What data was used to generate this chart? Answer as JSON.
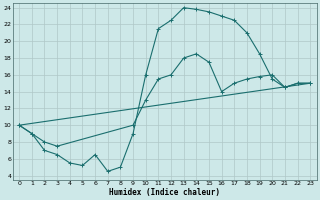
{
  "xlabel": "Humidex (Indice chaleur)",
  "bg_color": "#cde8e8",
  "grid_color": "#b0c8c8",
  "line_color": "#1a6e6e",
  "xlim": [
    -0.5,
    23.5
  ],
  "ylim": [
    3.5,
    24.5
  ],
  "xticks": [
    0,
    1,
    2,
    3,
    4,
    5,
    6,
    7,
    8,
    9,
    10,
    11,
    12,
    13,
    14,
    15,
    16,
    17,
    18,
    19,
    20,
    21,
    22,
    23
  ],
  "yticks": [
    4,
    6,
    8,
    10,
    12,
    14,
    16,
    18,
    20,
    22,
    24
  ],
  "line1_x": [
    0,
    1,
    2,
    3,
    4,
    5,
    6,
    7,
    8,
    9,
    10,
    11,
    12,
    13,
    14,
    15,
    16,
    17,
    18,
    19,
    20,
    21,
    22,
    23
  ],
  "line1_y": [
    10,
    9,
    7,
    6.5,
    5.5,
    5.2,
    6.5,
    4.5,
    5,
    9,
    16,
    21.5,
    22.5,
    24,
    23.8,
    23.5,
    23,
    22.5,
    21,
    18.5,
    15.5,
    14.5,
    15,
    15
  ],
  "line2_x": [
    0,
    1,
    2,
    3,
    9,
    10,
    11,
    12,
    13,
    14,
    15,
    16,
    17,
    18,
    19,
    20,
    21,
    22,
    23
  ],
  "line2_y": [
    10,
    9,
    8,
    7.5,
    10,
    13,
    15.5,
    16,
    18,
    18.5,
    17.5,
    14,
    15,
    15.5,
    15.8,
    16,
    14.5,
    15,
    15
  ],
  "line3_x": [
    0,
    23
  ],
  "line3_y": [
    10,
    15
  ]
}
